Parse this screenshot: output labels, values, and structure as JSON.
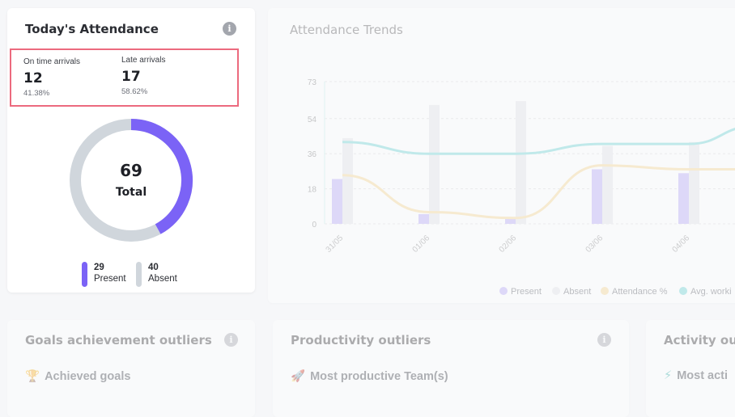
{
  "attendance": {
    "title": "Today's Attendance",
    "on_time": {
      "label": "On time arrivals",
      "value": "12",
      "percent": "41.38%"
    },
    "late": {
      "label": "Late arrivals",
      "value": "17",
      "percent": "58.62%"
    },
    "total": {
      "value": "69",
      "label": "Total"
    },
    "present": {
      "value": "29",
      "label": "Present",
      "color": "#7b63f6"
    },
    "absent": {
      "value": "40",
      "label": "Absent",
      "color": "#d0d6dc"
    }
  },
  "trends": {
    "title": "Attendance Trends",
    "legend": {
      "present": "Present",
      "absent": "Absent",
      "attendance_pct": "Attendance %",
      "avg_working": "Avg. worki"
    }
  },
  "chart_data": {
    "type": "bar",
    "title": "Attendance Trends",
    "categories": [
      "31/05",
      "01/06",
      "02/06",
      "03/06",
      "04/06"
    ],
    "y_ticks": [
      "73",
      "54",
      "36",
      "18",
      "0"
    ],
    "ylim": [
      0,
      73
    ],
    "series": [
      {
        "name": "Present",
        "type": "bar",
        "color": "#b7a7f8",
        "values": [
          23,
          5,
          3,
          28,
          26
        ]
      },
      {
        "name": "Absent",
        "type": "bar",
        "color": "#e3e4e7",
        "values": [
          44,
          61,
          63,
          40,
          42
        ]
      },
      {
        "name": "Attendance %",
        "type": "line",
        "color": "#f8d68e",
        "values": [
          25,
          6,
          3,
          30,
          28
        ]
      },
      {
        "name": "Avg. worki",
        "type": "line",
        "color": "#6ad3d3",
        "values": [
          42,
          36,
          36,
          41,
          41
        ]
      }
    ]
  },
  "goals": {
    "title": "Goals achievement outliers",
    "item": "Achieved goals"
  },
  "productivity": {
    "title": "Productivity outliers",
    "item": "Most productive Team(s)"
  },
  "activity": {
    "title": "Activity outl",
    "item": "Most acti"
  }
}
